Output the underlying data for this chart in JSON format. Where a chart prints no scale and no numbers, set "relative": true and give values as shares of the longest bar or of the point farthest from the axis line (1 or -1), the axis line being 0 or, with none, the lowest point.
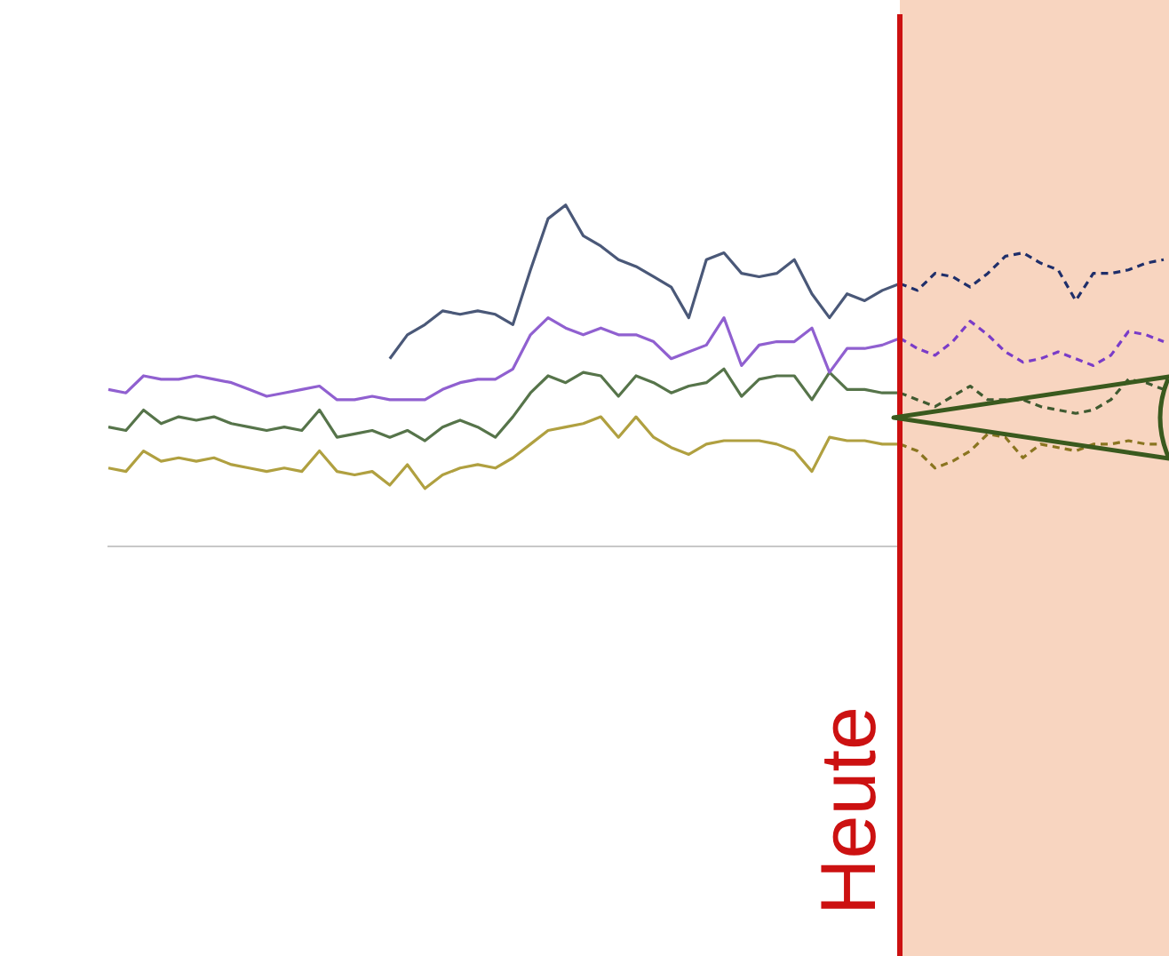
{
  "chart_data": {
    "type": "line",
    "relative": true,
    "grid": false,
    "legend": false,
    "marker": "none",
    "categories": [
      null,
      null,
      null,
      null,
      null,
      null,
      null,
      null,
      null,
      null,
      null,
      null,
      null,
      null,
      null,
      null,
      null,
      null,
      null,
      null,
      null,
      null,
      null,
      null,
      null,
      null,
      null,
      null,
      null,
      null,
      null,
      null,
      null,
      null,
      null,
      null,
      null,
      null,
      null,
      null,
      null,
      null,
      null,
      null,
      null,
      null,
      null,
      null,
      null,
      null,
      null,
      null,
      null,
      null,
      null,
      null,
      null,
      null,
      null,
      null,
      null
    ],
    "series": [
      {
        "color": "#4a5878",
        "line_style": "solid",
        "values": [
          null,
          null,
          null,
          null,
          null,
          null,
          null,
          null,
          null,
          null,
          null,
          null,
          null,
          null,
          null,
          null,
          0.55,
          0.62,
          0.65,
          0.69,
          0.68,
          0.69,
          0.68,
          0.65,
          0.81,
          0.96,
          1.0,
          0.91,
          0.88,
          0.84,
          0.82,
          0.79,
          0.76,
          0.67,
          0.84,
          0.86,
          0.8,
          0.79,
          0.8,
          0.84,
          0.74,
          0.67,
          0.74,
          0.72,
          0.75,
          0.77,
          null,
          null,
          null,
          null,
          null,
          null,
          null,
          null,
          null,
          null,
          null,
          null,
          null,
          null,
          null
        ]
      },
      {
        "color": "#9060d0",
        "line_style": "solid",
        "values": [
          0.46,
          0.45,
          0.5,
          0.49,
          0.49,
          0.5,
          0.49,
          0.48,
          0.46,
          0.44,
          0.45,
          0.46,
          0.47,
          0.43,
          0.43,
          0.44,
          0.43,
          0.43,
          0.43,
          0.46,
          0.48,
          0.49,
          0.49,
          0.52,
          0.62,
          0.67,
          0.64,
          0.62,
          0.64,
          0.62,
          0.62,
          0.6,
          0.55,
          0.57,
          0.59,
          0.67,
          0.53,
          0.59,
          0.6,
          0.6,
          0.64,
          0.51,
          0.58,
          0.58,
          0.59,
          0.61,
          null,
          null,
          null,
          null,
          null,
          null,
          null,
          null,
          null,
          null,
          null,
          null,
          null,
          null,
          null
        ]
      },
      {
        "color": "#56744a",
        "line_style": "solid",
        "values": [
          0.35,
          0.34,
          0.4,
          0.36,
          0.38,
          0.37,
          0.38,
          0.36,
          0.35,
          0.34,
          0.35,
          0.34,
          0.4,
          0.32,
          0.33,
          0.34,
          0.32,
          0.34,
          0.31,
          0.35,
          0.37,
          0.35,
          0.32,
          0.38,
          0.45,
          0.5,
          0.48,
          0.51,
          0.5,
          0.44,
          0.5,
          0.48,
          0.45,
          0.47,
          0.48,
          0.52,
          0.44,
          0.49,
          0.5,
          0.5,
          0.43,
          0.51,
          0.46,
          0.46,
          0.45,
          0.45,
          null,
          null,
          null,
          null,
          null,
          null,
          null,
          null,
          null,
          null,
          null,
          null,
          null,
          null,
          null
        ]
      },
      {
        "color": "#b0a040",
        "line_style": "solid",
        "values": [
          0.23,
          0.22,
          0.28,
          0.25,
          0.26,
          0.25,
          0.26,
          0.24,
          0.23,
          0.22,
          0.23,
          0.22,
          0.28,
          0.22,
          0.21,
          0.22,
          0.18,
          0.24,
          0.17,
          0.21,
          0.23,
          0.24,
          0.23,
          0.26,
          0.3,
          0.34,
          0.35,
          0.36,
          0.38,
          0.32,
          0.38,
          0.32,
          0.29,
          0.27,
          0.3,
          0.31,
          0.31,
          0.31,
          0.3,
          0.28,
          0.22,
          0.32,
          0.31,
          0.31,
          0.3,
          0.3,
          null,
          null,
          null,
          null,
          null,
          null,
          null,
          null,
          null,
          null,
          null,
          null,
          null,
          null,
          null
        ]
      },
      {
        "color": "#1f2f6a",
        "line_style": "dashed",
        "values": [
          null,
          null,
          null,
          null,
          null,
          null,
          null,
          null,
          null,
          null,
          null,
          null,
          null,
          null,
          null,
          null,
          null,
          null,
          null,
          null,
          null,
          null,
          null,
          null,
          null,
          null,
          null,
          null,
          null,
          null,
          null,
          null,
          null,
          null,
          null,
          null,
          null,
          null,
          null,
          null,
          null,
          null,
          null,
          null,
          null,
          0.77,
          0.75,
          0.8,
          0.79,
          0.76,
          0.8,
          0.85,
          0.86,
          0.83,
          0.81,
          0.72,
          0.8,
          0.8,
          0.81,
          0.83,
          0.84
        ]
      },
      {
        "color": "#7a3cc8",
        "line_style": "dashed",
        "values": [
          null,
          null,
          null,
          null,
          null,
          null,
          null,
          null,
          null,
          null,
          null,
          null,
          null,
          null,
          null,
          null,
          null,
          null,
          null,
          null,
          null,
          null,
          null,
          null,
          null,
          null,
          null,
          null,
          null,
          null,
          null,
          null,
          null,
          null,
          null,
          null,
          null,
          null,
          null,
          null,
          null,
          null,
          null,
          null,
          null,
          0.61,
          0.58,
          0.56,
          0.6,
          0.66,
          0.62,
          0.57,
          0.54,
          0.55,
          0.57,
          0.55,
          0.53,
          0.56,
          0.63,
          0.62,
          0.6
        ]
      },
      {
        "color": "#3f5a30",
        "line_style": "dashed",
        "values": [
          null,
          null,
          null,
          null,
          null,
          null,
          null,
          null,
          null,
          null,
          null,
          null,
          null,
          null,
          null,
          null,
          null,
          null,
          null,
          null,
          null,
          null,
          null,
          null,
          null,
          null,
          null,
          null,
          null,
          null,
          null,
          null,
          null,
          null,
          null,
          null,
          null,
          null,
          null,
          null,
          null,
          null,
          null,
          null,
          null,
          0.45,
          0.43,
          0.41,
          0.44,
          0.47,
          0.43,
          0.43,
          0.43,
          0.41,
          0.4,
          0.39,
          0.4,
          0.43,
          0.49,
          0.48,
          0.46
        ]
      },
      {
        "color": "#8a7520",
        "line_style": "dashed",
        "values": [
          null,
          null,
          null,
          null,
          null,
          null,
          null,
          null,
          null,
          null,
          null,
          null,
          null,
          null,
          null,
          null,
          null,
          null,
          null,
          null,
          null,
          null,
          null,
          null,
          null,
          null,
          null,
          null,
          null,
          null,
          null,
          null,
          null,
          null,
          null,
          null,
          null,
          null,
          null,
          null,
          null,
          null,
          null,
          null,
          null,
          0.3,
          0.28,
          0.23,
          0.25,
          0.28,
          0.33,
          0.32,
          0.26,
          0.3,
          0.29,
          0.28,
          0.3,
          0.3,
          0.31,
          0.3,
          0.3
        ]
      }
    ],
    "annotations": [
      "Heute"
    ]
  }
}
